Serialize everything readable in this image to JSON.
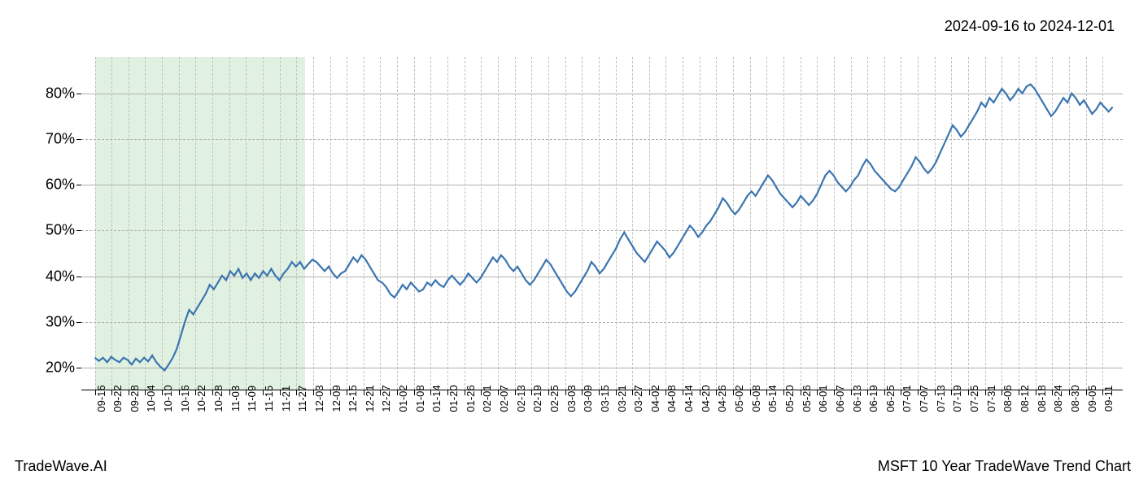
{
  "header": {
    "date_range": "2024-09-16 to 2024-12-01"
  },
  "footer": {
    "brand": "TradeWave.AI",
    "title": "MSFT 10 Year TradeWave Trend Chart"
  },
  "chart": {
    "type": "line",
    "background_color": "#ffffff",
    "grid_color_dashed": "#b0b0b0",
    "grid_color_solid": "#b0b0b0",
    "vgrid_color": "#c0c0c0",
    "line_color": "#3a75b0",
    "line_width": 2.2,
    "highlight": {
      "color": "#c8e6c9",
      "opacity": 0.55,
      "from_x": "09-16",
      "to_x": "12-01"
    },
    "ylim": [
      15,
      88
    ],
    "ytick_major": [
      20,
      40,
      60,
      80
    ],
    "ytick_minor": [
      30,
      50,
      70
    ],
    "ytick_labels": [
      "20%",
      "30%",
      "40%",
      "50%",
      "60%",
      "70%",
      "80%"
    ],
    "xticks": [
      "09-16",
      "09-22",
      "09-28",
      "10-04",
      "10-10",
      "10-16",
      "10-22",
      "10-28",
      "11-03",
      "11-09",
      "11-15",
      "11-21",
      "11-27",
      "12-03",
      "12-09",
      "12-15",
      "12-21",
      "12-27",
      "01-02",
      "01-08",
      "01-14",
      "01-20",
      "01-26",
      "02-01",
      "02-07",
      "02-13",
      "02-19",
      "02-25",
      "03-03",
      "03-09",
      "03-15",
      "03-21",
      "03-27",
      "04-02",
      "04-08",
      "04-14",
      "04-20",
      "04-26",
      "05-02",
      "05-08",
      "05-14",
      "05-20",
      "05-26",
      "06-01",
      "06-07",
      "06-13",
      "06-19",
      "06-25",
      "07-01",
      "07-07",
      "07-13",
      "07-19",
      "07-25",
      "07-31",
      "08-06",
      "08-12",
      "08-18",
      "08-24",
      "08-30",
      "09-05",
      "09-11"
    ],
    "xlim_units": 62,
    "x_offset_units": 0.8,
    "series": [
      22.0,
      21.3,
      22.0,
      21.0,
      22.2,
      21.5,
      21.0,
      22.0,
      21.5,
      20.5,
      21.8,
      21.0,
      22.0,
      21.2,
      22.5,
      21.0,
      20.0,
      19.2,
      20.5,
      22.0,
      24.0,
      27.0,
      30.0,
      32.5,
      31.5,
      33.0,
      34.5,
      36.0,
      38.0,
      37.0,
      38.5,
      40.0,
      39.0,
      41.0,
      40.0,
      41.5,
      39.5,
      40.5,
      39.0,
      40.5,
      39.5,
      41.0,
      40.0,
      41.5,
      40.0,
      39.0,
      40.5,
      41.5,
      43.0,
      42.0,
      43.0,
      41.5,
      42.5,
      43.5,
      43.0,
      42.0,
      41.0,
      42.0,
      40.5,
      39.5,
      40.5,
      41.0,
      42.5,
      44.0,
      43.0,
      44.5,
      43.5,
      42.0,
      40.5,
      39.0,
      38.5,
      37.5,
      36.0,
      35.2,
      36.5,
      38.0,
      37.0,
      38.5,
      37.5,
      36.5,
      37.0,
      38.5,
      37.8,
      39.0,
      38.0,
      37.5,
      39.0,
      40.0,
      39.0,
      38.0,
      39.0,
      40.5,
      39.5,
      38.5,
      39.5,
      41.0,
      42.5,
      44.0,
      43.0,
      44.5,
      43.5,
      42.0,
      41.0,
      42.0,
      40.5,
      39.0,
      38.0,
      39.0,
      40.5,
      42.0,
      43.5,
      42.5,
      41.0,
      39.5,
      38.0,
      36.5,
      35.5,
      36.5,
      38.0,
      39.5,
      41.0,
      43.0,
      42.0,
      40.5,
      41.5,
      43.0,
      44.5,
      46.0,
      48.0,
      49.5,
      48.0,
      46.5,
      45.0,
      44.0,
      43.0,
      44.5,
      46.0,
      47.5,
      46.5,
      45.5,
      44.0,
      45.0,
      46.5,
      48.0,
      49.5,
      51.0,
      50.0,
      48.5,
      49.5,
      51.0,
      52.0,
      53.5,
      55.0,
      57.0,
      56.0,
      54.5,
      53.5,
      54.5,
      56.0,
      57.5,
      58.5,
      57.5,
      59.0,
      60.5,
      62.0,
      61.0,
      59.5,
      58.0,
      57.0,
      56.0,
      55.0,
      56.0,
      57.5,
      56.5,
      55.5,
      56.5,
      58.0,
      60.0,
      62.0,
      63.0,
      62.0,
      60.5,
      59.5,
      58.5,
      59.5,
      61.0,
      62.0,
      64.0,
      65.5,
      64.5,
      63.0,
      62.0,
      61.0,
      60.0,
      59.0,
      58.5,
      59.5,
      61.0,
      62.5,
      64.0,
      66.0,
      65.0,
      63.5,
      62.5,
      63.5,
      65.0,
      67.0,
      69.0,
      71.0,
      73.0,
      72.0,
      70.5,
      71.5,
      73.0,
      74.5,
      76.0,
      78.0,
      77.0,
      79.0,
      78.0,
      79.5,
      81.0,
      80.0,
      78.5,
      79.5,
      81.0,
      80.0,
      81.5,
      82.0,
      81.0,
      79.5,
      78.0,
      76.5,
      75.0,
      76.0,
      77.5,
      79.0,
      78.0,
      80.0,
      79.0,
      77.5,
      78.5,
      77.0,
      75.5,
      76.5,
      78.0,
      77.0,
      76.0,
      77.0
    ]
  }
}
